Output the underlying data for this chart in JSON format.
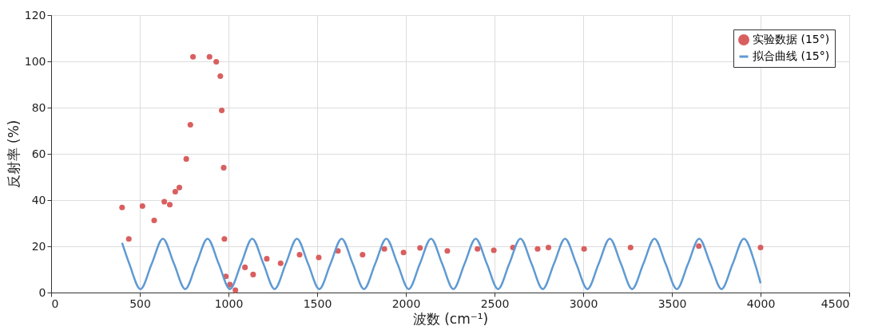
{
  "chart_data": {
    "type": "line",
    "xlabel": "波数 (cm⁻¹)",
    "ylabel": "反射率 (%)",
    "xlim": [
      0,
      4500
    ],
    "xticks": [
      0,
      500,
      1000,
      1500,
      2000,
      2500,
      3000,
      3500,
      4000,
      4500
    ],
    "ylim": [
      0,
      120
    ],
    "yticks": [
      0,
      20,
      40,
      60,
      80,
      100,
      120
    ],
    "grid": true,
    "legend": "top right",
    "series": [
      {
        "name": "实验数据 (15°)",
        "type": "scatter",
        "marker": "circle",
        "color": "#d95f5f",
        "x": [
          400,
          438,
          515,
          581,
          638,
          669,
          700,
          723,
          762,
          785,
          800,
          893,
          931,
          954,
          962,
          973,
          977,
          985,
          1008,
          1039,
          1093,
          1139,
          1216,
          1294,
          1401,
          1509,
          1617,
          1756,
          1879,
          1987,
          2080,
          2234,
          2404,
          2496,
          2604,
          2743,
          2804,
          3005,
          3267,
          3652,
          4000
        ],
        "values": [
          36.8,
          23.2,
          37.4,
          31.2,
          39.3,
          38,
          43.6,
          45.4,
          57.8,
          72.6,
          102,
          102,
          99.8,
          93.6,
          78.8,
          54,
          23.2,
          7,
          3.4,
          1,
          10.9,
          7.8,
          14.6,
          12.7,
          16.4,
          15.2,
          18.0,
          16.4,
          18.9,
          17.3,
          19.3,
          18.0,
          18.9,
          18.3,
          19.5,
          18.9,
          19.5,
          18.9,
          19.5,
          20.1,
          19.5
        ]
      },
      {
        "name": "拟合曲线 (15°)",
        "marker": "none",
        "line_style": "solid",
        "color": "#5f9ad3",
        "x": [
          400,
          441,
          504,
          567,
          630,
          693,
          756,
          819,
          882,
          945,
          1008,
          1071,
          1134,
          1197,
          1260,
          1323,
          1386,
          1449,
          1512,
          1575,
          1638,
          1701,
          1764,
          1827,
          1890,
          1953,
          2016,
          2079,
          2142,
          2205,
          2268,
          2331,
          2394,
          2457,
          2520,
          2583,
          2646,
          2709,
          2772,
          2835,
          2898,
          2961,
          3024,
          3087,
          3150,
          3213,
          3276,
          3339,
          3402,
          3465,
          3528,
          3591,
          3654,
          3717,
          3780,
          3843,
          3906,
          3969,
          4000
        ],
        "values": [
          21.5,
          12.4,
          1.5,
          12.4,
          23.3,
          12.4,
          1.5,
          12.4,
          23.3,
          12.4,
          1.5,
          12.4,
          23.3,
          12.4,
          1.5,
          12.4,
          23.3,
          12.4,
          1.5,
          12.4,
          23.3,
          12.4,
          1.5,
          12.4,
          23.3,
          12.4,
          1.5,
          12.4,
          23.3,
          12.4,
          1.5,
          12.4,
          23.3,
          12.4,
          1.5,
          12.4,
          23.3,
          12.4,
          1.5,
          12.4,
          23.3,
          12.4,
          1.5,
          12.4,
          23.3,
          12.4,
          1.5,
          12.4,
          23.3,
          12.4,
          1.5,
          12.4,
          23.3,
          12.4,
          1.5,
          12.4,
          23.3,
          12.4,
          4
        ]
      }
    ]
  }
}
